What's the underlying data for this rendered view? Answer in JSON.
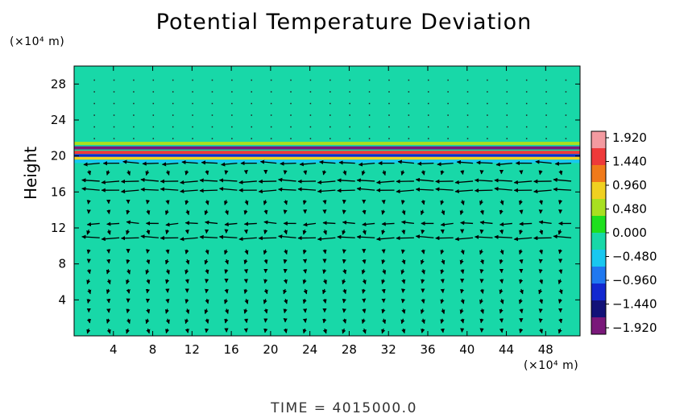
{
  "chart_data": {
    "type": "heatmap",
    "title": "Potential Temperature Deviation",
    "ylabel": "Height",
    "xlabel": "",
    "x_unit": "(×10⁴ m)",
    "y_unit": "(×10⁴ m)",
    "xlim": [
      0,
      51.5
    ],
    "ylim": [
      0,
      30
    ],
    "x_ticks": [
      4,
      8,
      12,
      16,
      20,
      24,
      28,
      32,
      36,
      40,
      44,
      48
    ],
    "y_ticks": [
      4,
      8,
      12,
      16,
      20,
      24,
      28
    ],
    "colorbar": {
      "ticks": [
        "1.920",
        "1.440",
        "0.960",
        "0.480",
        "0.000",
        "−0.480",
        "−0.960",
        "−1.440",
        "−1.920"
      ],
      "range": [
        -1.92,
        1.92
      ],
      "colors": [
        "#f39aa0",
        "#ee3a3a",
        "#f07a1a",
        "#f0d020",
        "#a8e020",
        "#1ee01e",
        "#18d8a8",
        "#18c8f0",
        "#1f78f0",
        "#1228d0",
        "#121278",
        "#7a187a"
      ]
    },
    "background_value": 0.0,
    "bands": [
      {
        "y_center": 20.9,
        "thickness": 0.35,
        "value": -1.92
      },
      {
        "y_center": 20.4,
        "thickness": 0.35,
        "value": 1.44
      },
      {
        "y_center": 20.05,
        "thickness": 0.3,
        "value": -1.2
      },
      {
        "y_center": 19.75,
        "thickness": 0.3,
        "value": 0.96
      },
      {
        "y_center": 19.4,
        "thickness": 0.35,
        "value": -0.48
      },
      {
        "y_center": 21.4,
        "thickness": 0.35,
        "value": 0.48
      }
    ],
    "wind_rows": [
      {
        "y": 19.2,
        "direction": "west",
        "strength": 0.9
      },
      {
        "y": 17.2,
        "direction": "west",
        "strength": 1.0
      },
      {
        "y": 16.2,
        "direction": "west",
        "strength": 1.0
      },
      {
        "y": 12.5,
        "direction": "west",
        "strength": 0.7
      },
      {
        "y": 10.9,
        "direction": "west",
        "strength": 1.0
      }
    ],
    "time_label": "TIME  =  4015000.0"
  }
}
